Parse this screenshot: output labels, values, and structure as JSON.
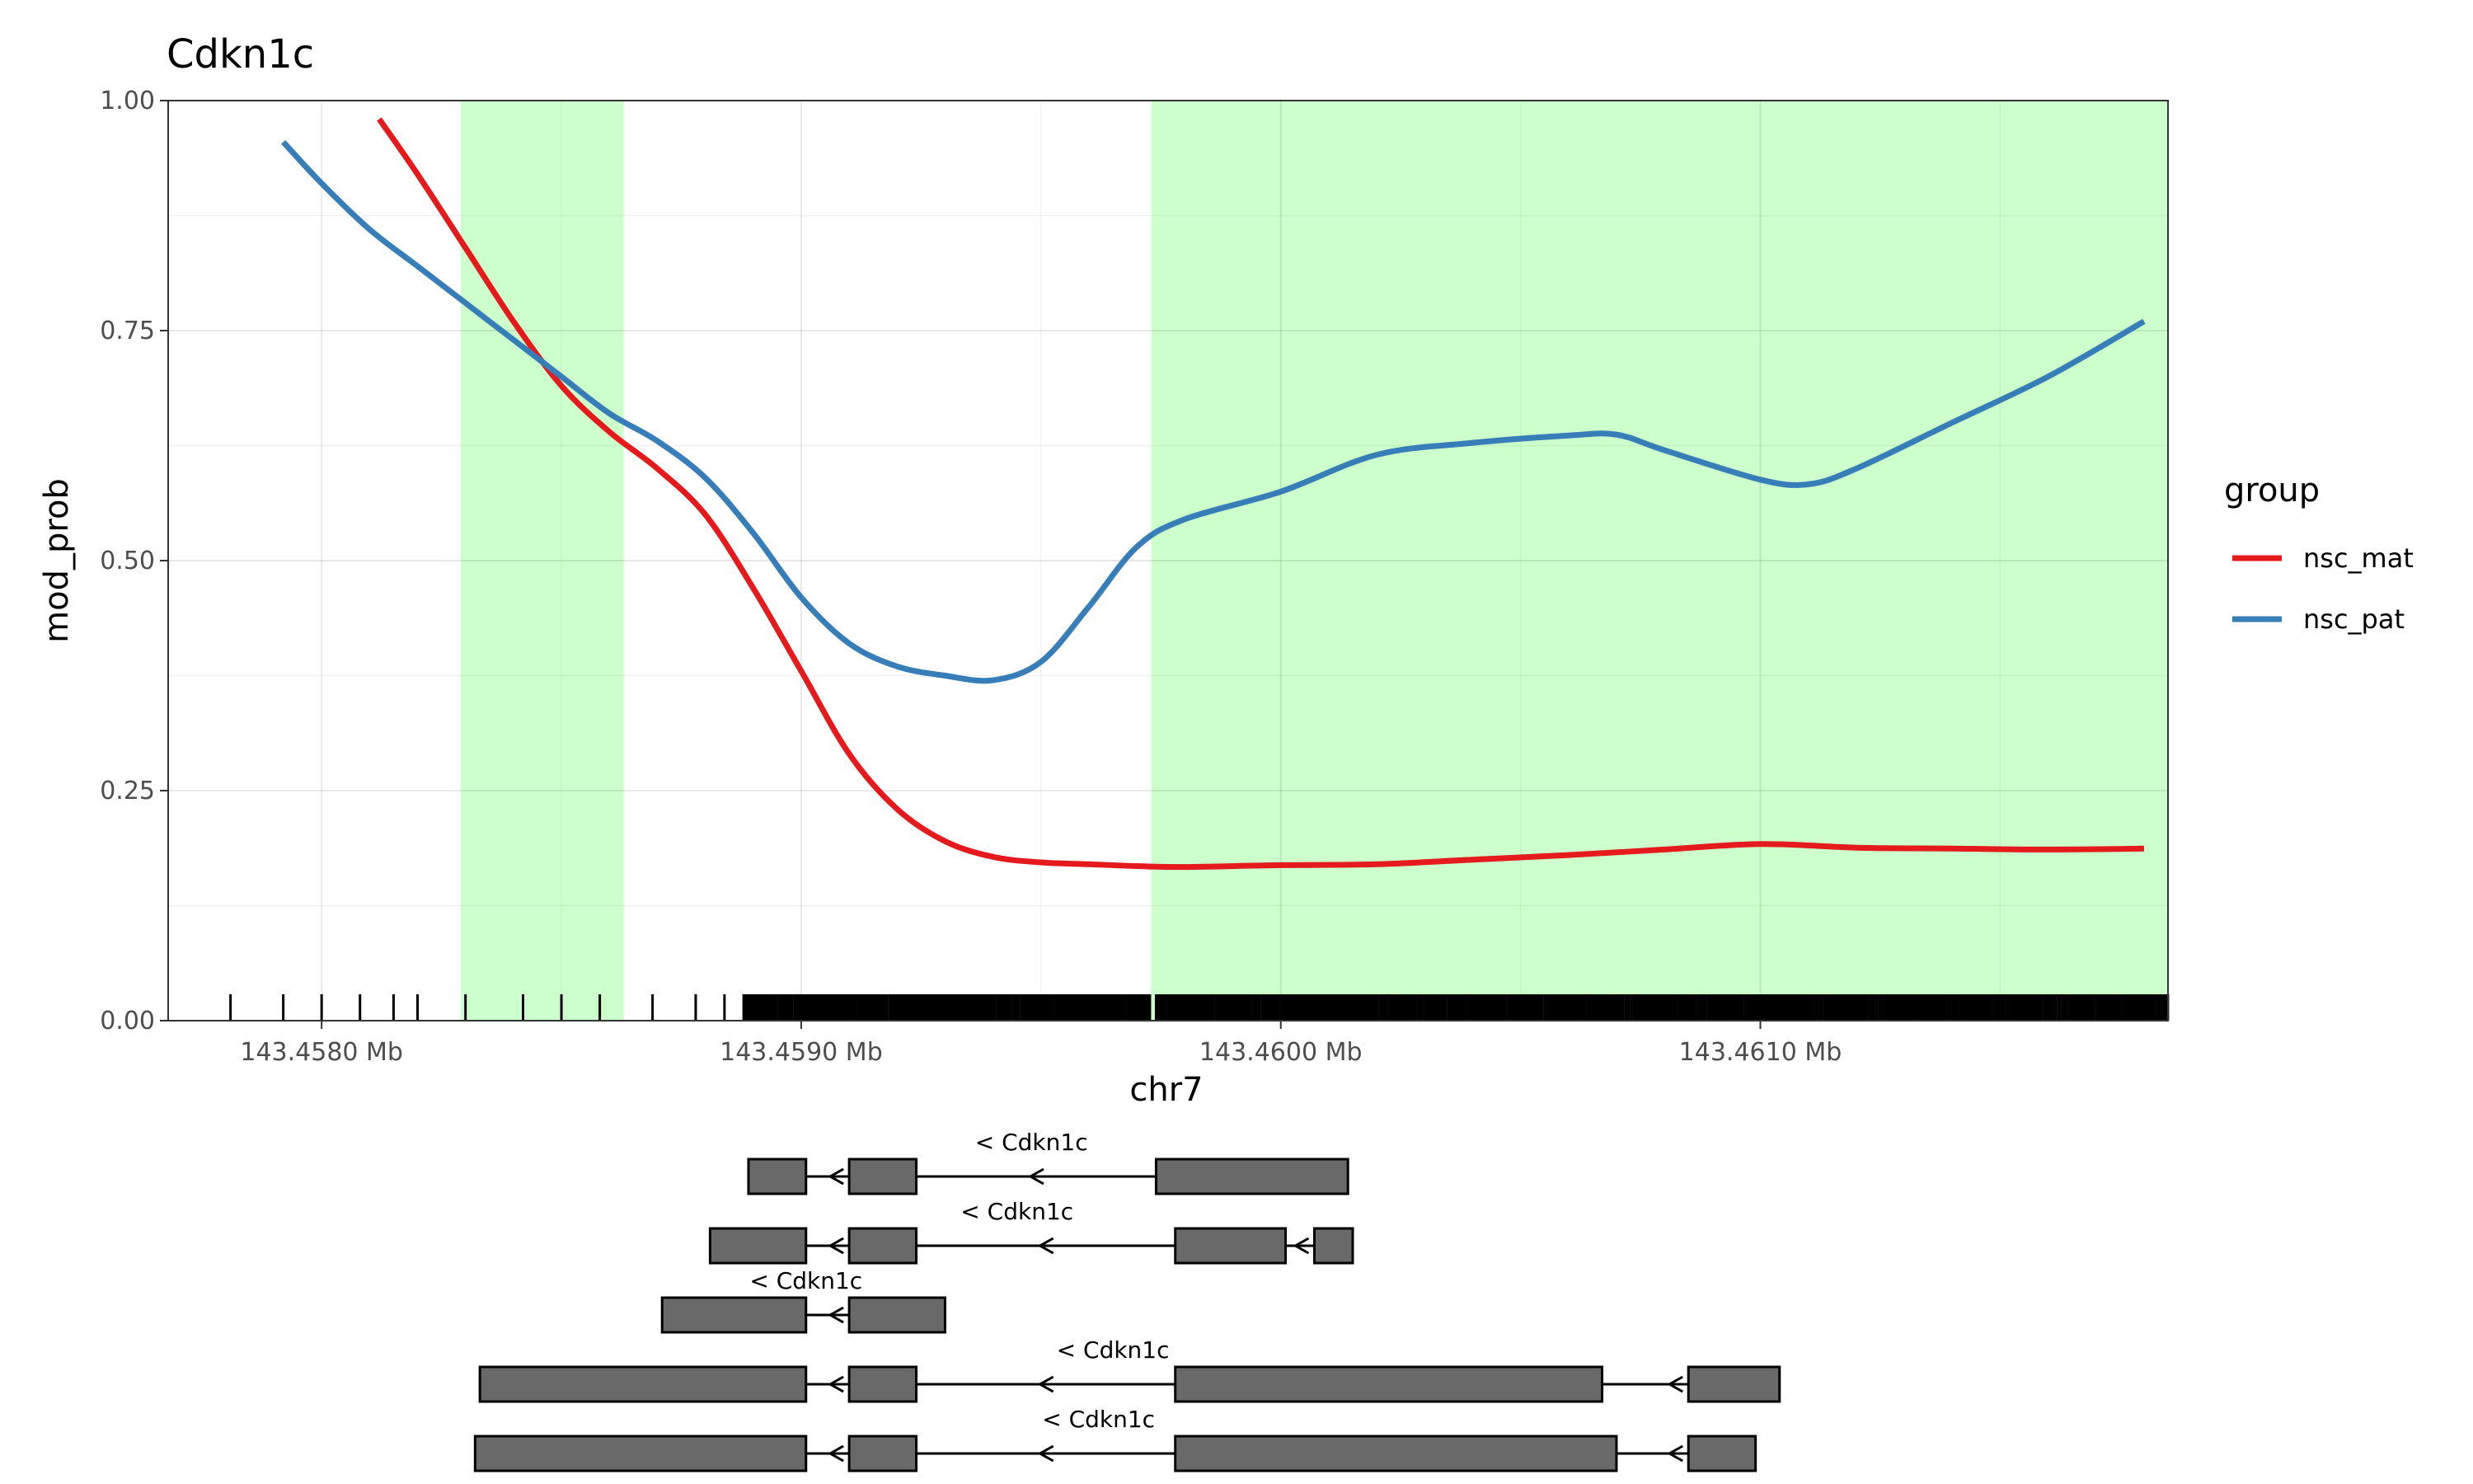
{
  "chart_data": {
    "type": "line",
    "title": "Cdkn1c",
    "xlabel": "chr7",
    "ylabel": "mod_prob",
    "xlim": [
      143.45768,
      143.46185
    ],
    "ylim": [
      0,
      1
    ],
    "x_ticks": [
      143.458,
      143.459,
      143.46,
      143.461
    ],
    "x_tick_labels": [
      "143.4580 Mb",
      "143.4590 Mb",
      "143.4600 Mb",
      "143.4610 Mb"
    ],
    "y_ticks": [
      0,
      0.25,
      0.5,
      0.75,
      1.0
    ],
    "y_tick_labels": [
      "0.00",
      "0.25",
      "0.50",
      "0.75",
      "1.00"
    ],
    "grid": true,
    "highlight_regions": [
      {
        "start": 143.45829,
        "end": 143.45863,
        "color": "#ccffcc"
      },
      {
        "start": 143.45973,
        "end": 143.46185,
        "color": "#ccffcc"
      }
    ],
    "legend": {
      "title": "group",
      "position": "right",
      "entries": [
        {
          "label": "nsc_mat",
          "color": "#e41a1c"
        },
        {
          "label": "nsc_pat",
          "color": "#377eb8"
        }
      ]
    },
    "series": [
      {
        "name": "nsc_mat",
        "color": "#e41a1c",
        "x": [
          143.45812,
          143.4582,
          143.4583,
          143.4584,
          143.4585,
          143.4586,
          143.4587,
          143.4588,
          143.4589,
          143.459,
          143.4591,
          143.4592,
          143.4593,
          143.4594,
          143.4595,
          143.4596,
          143.4597,
          143.4598,
          143.46,
          143.4602,
          143.4604,
          143.4606,
          143.4608,
          143.461,
          143.4612,
          143.4614,
          143.4616,
          143.4618
        ],
        "y": [
          0.98,
          0.92,
          0.84,
          0.76,
          0.69,
          0.64,
          0.6,
          0.55,
          0.47,
          0.38,
          0.29,
          0.23,
          0.195,
          0.178,
          0.172,
          0.17,
          0.168,
          0.167,
          0.169,
          0.17,
          0.175,
          0.18,
          0.186,
          0.192,
          0.188,
          0.187,
          0.186,
          0.187
        ]
      },
      {
        "name": "nsc_pat",
        "color": "#377eb8",
        "x": [
          143.45792,
          143.458,
          143.4581,
          143.4582,
          143.4583,
          143.4584,
          143.4585,
          143.4586,
          143.4587,
          143.4588,
          143.4589,
          143.459,
          143.4591,
          143.4592,
          143.4593,
          143.4594,
          143.4595,
          143.4596,
          143.4597,
          143.4598,
          143.46,
          143.4602,
          143.4604,
          143.4606,
          143.4607,
          143.4608,
          143.461,
          143.4611,
          143.4612,
          143.4614,
          143.4616,
          143.4618
        ],
        "y": [
          0.955,
          0.91,
          0.86,
          0.82,
          0.78,
          0.74,
          0.7,
          0.66,
          0.63,
          0.59,
          0.53,
          0.46,
          0.41,
          0.385,
          0.375,
          0.37,
          0.39,
          0.45,
          0.515,
          0.545,
          0.575,
          0.615,
          0.628,
          0.636,
          0.637,
          0.62,
          0.588,
          0.583,
          0.6,
          0.65,
          0.7,
          0.76
        ]
      }
    ],
    "rug": {
      "color": "#000000",
      "sparse_positions": [
        143.45781,
        143.45792,
        143.458,
        143.45808,
        143.45815,
        143.4582,
        143.4583,
        143.45842,
        143.4585,
        143.45858,
        143.45869,
        143.45878,
        143.45884
      ],
      "dense_ranges": [
        [
          143.45888,
          143.45973
        ],
        [
          143.45974,
          143.46185
        ]
      ]
    },
    "gene_track": {
      "transcripts": [
        {
          "label": "< Cdkn1c",
          "label_x": 143.45948,
          "exons": [
            [
              143.45889,
              143.45901
            ],
            [
              143.4591,
              143.45924
            ],
            [
              143.45974,
              143.46014
            ]
          ],
          "strand": "-"
        },
        {
          "label": "< Cdkn1c",
          "label_x": 143.45945,
          "exons": [
            [
              143.45881,
              143.45901
            ],
            [
              143.4591,
              143.45924
            ],
            [
              143.45978,
              143.46001
            ],
            [
              143.46007,
              143.46015
            ]
          ],
          "strand": "-"
        },
        {
          "label": "< Cdkn1c",
          "label_x": 143.45901,
          "exons": [
            [
              143.45871,
              143.45901
            ],
            [
              143.4591,
              143.4593
            ]
          ],
          "strand": "-"
        },
        {
          "label": "< Cdkn1c",
          "label_x": 143.45965,
          "exons": [
            [
              143.45833,
              143.45901
            ],
            [
              143.4591,
              143.45924
            ],
            [
              143.45978,
              143.46067
            ],
            [
              143.46085,
              143.46104
            ]
          ],
          "strand": "-"
        },
        {
          "label": "< Cdkn1c",
          "label_x": 143.45962,
          "exons": [
            [
              143.45832,
              143.45901
            ],
            [
              143.4591,
              143.45924
            ],
            [
              143.45978,
              143.4607
            ],
            [
              143.46085,
              143.46099
            ]
          ],
          "strand": "-"
        }
      ]
    }
  }
}
